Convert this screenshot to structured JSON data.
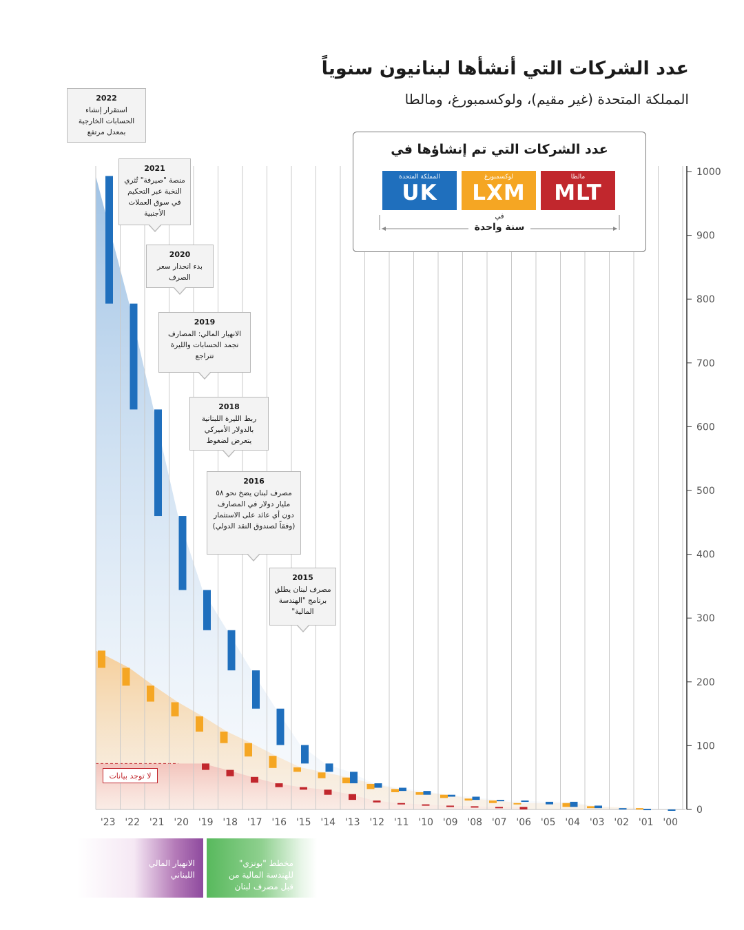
{
  "header": {
    "title": "عدد الشركات التي أنشأها لبنانيون سنوياً",
    "subtitle": "المملكة المتحدة (غير مقيم)، ولوكسمبورغ، ومالطا"
  },
  "legend": {
    "title": "عدد الشركات التي تم إنشاؤها في",
    "items": [
      {
        "code": "UK",
        "label": "المملكة المتحدة",
        "color": "#1f6fbd"
      },
      {
        "code": "LXM",
        "label": "لوكسمبورغ",
        "color": "#f5a623"
      },
      {
        "code": "MLT",
        "label": "مالطا",
        "color": "#c1272d"
      }
    ],
    "fi": "في",
    "period": "سنة واحدة"
  },
  "annotations": [
    {
      "year": "2022",
      "text": "استقرار إنشاء الحسابات الخارجية بمعدل مرتفع"
    },
    {
      "year": "2021",
      "text": "منصة \"صيرفة\" تُثري النخبة عبر التحكيم في سوق العملات الأجنبية"
    },
    {
      "year": "2020",
      "text": "بدء انحدار سعر الصرف"
    },
    {
      "year": "2019",
      "text": "الانهيار المالي: المصارف تجمد الحسابات والليرة تتراجع"
    },
    {
      "year": "2018",
      "text": "ربط الليرة اللبنانية بالدولار الأميركي يتعرض لضغوط"
    },
    {
      "year": "2016",
      "text": "مصرف لبنان يضخ نحو ٥٨ مليار دولار في المصارف دون أي عائد على الاستثمار (وفقاً لصندوق النقد الدولي)"
    },
    {
      "year": "2015",
      "text": "مصرف لبنان يطلق برنامج \"الهندسة المالية\""
    }
  ],
  "no_data_label": "لا توجد بيانات",
  "periods": {
    "crisis": "الانهيار المالي اللبناني",
    "ponzi": "مخطط \"بونزي\" للهندسة المالية من قبل مصرف لبنان"
  },
  "colors": {
    "uk": "#1f6fbd",
    "lxm": "#f5a623",
    "mlt": "#c1272d",
    "crisis_band": "#8e4a9e",
    "ponzi_band": "#58b95d"
  },
  "chart_data": {
    "type": "bar",
    "title": "عدد الشركات التي أنشأها لبنانيون سنوياً",
    "categories": [
      "'23",
      "'22",
      "'21",
      "'20",
      "'19",
      "'18",
      "'17",
      "'16",
      "'15",
      "'14",
      "'13",
      "'12",
      "'11",
      "'10",
      "'09",
      "'08",
      "'07",
      "'06",
      "'05",
      "'04",
      "'03",
      "'02",
      "'01",
      "'00"
    ],
    "y_ticks": [
      0,
      100,
      200,
      300,
      400,
      500,
      600,
      700,
      800,
      900,
      1000
    ],
    "ylim": [
      0,
      1000
    ],
    "y_axis_side": "right",
    "x_axis_order": "descending years left to right",
    "series": [
      {
        "name": "UK",
        "values": [
          [
            793,
            993
          ],
          [
            627,
            793
          ],
          [
            460,
            627
          ],
          [
            344,
            460
          ],
          [
            281,
            344
          ],
          [
            218,
            281
          ],
          [
            158,
            218
          ],
          [
            101,
            158
          ],
          [
            72,
            101
          ],
          [
            59,
            72
          ],
          [
            41,
            59
          ],
          [
            34,
            41
          ],
          [
            29,
            34
          ],
          [
            23,
            29
          ],
          [
            20,
            23
          ],
          [
            15,
            20
          ],
          [
            14,
            15
          ],
          [
            12,
            14
          ],
          [
            8,
            12
          ],
          [
            4,
            12
          ],
          [
            2,
            6
          ],
          [
            1,
            2
          ],
          [
            0,
            1
          ],
          [
            0,
            0
          ]
        ]
      },
      {
        "name": "LXM",
        "values": [
          [
            222,
            249
          ],
          [
            194,
            222
          ],
          [
            169,
            194
          ],
          [
            146,
            168
          ],
          [
            122,
            146
          ],
          [
            104,
            122
          ],
          [
            83,
            104
          ],
          [
            65,
            84
          ],
          [
            59,
            66
          ],
          [
            49,
            58
          ],
          [
            41,
            50
          ],
          [
            32,
            40
          ],
          [
            27,
            32
          ],
          [
            23,
            27
          ],
          [
            18,
            23
          ],
          [
            14,
            17
          ],
          [
            10,
            14
          ],
          [
            8,
            10
          ],
          [
            null,
            null
          ],
          [
            4,
            10
          ],
          [
            2,
            5
          ],
          [
            null,
            null
          ],
          [
            1,
            2
          ],
          [
            null,
            null
          ]
        ]
      },
      {
        "name": "MLT",
        "values": [
          [
            null,
            null
          ],
          [
            null,
            null
          ],
          [
            null,
            null
          ],
          [
            null,
            null
          ],
          [
            62,
            72
          ],
          [
            52,
            62
          ],
          [
            42,
            51
          ],
          [
            35,
            41
          ],
          [
            31,
            35
          ],
          [
            23,
            31
          ],
          [
            15,
            24
          ],
          [
            11,
            14
          ],
          [
            8,
            10
          ],
          [
            6,
            8
          ],
          [
            5,
            6
          ],
          [
            4,
            5
          ],
          [
            3,
            4
          ],
          [
            0,
            4
          ],
          [
            null,
            null
          ],
          [
            null,
            null
          ],
          [
            null,
            null
          ],
          [
            null,
            null
          ],
          [
            null,
            null
          ],
          [
            null,
            null
          ]
        ]
      }
    ]
  }
}
